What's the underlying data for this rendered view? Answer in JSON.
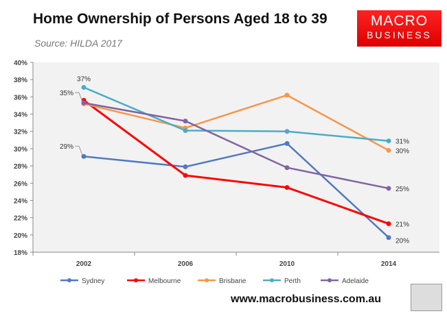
{
  "chart_data": {
    "type": "line",
    "title": "Home Ownership of Persons Aged 18 to 39",
    "subtitle": "Source: HILDA 2017",
    "categories": [
      "2002",
      "2006",
      "2010",
      "2014"
    ],
    "ylim": [
      18,
      40
    ],
    "yticks": [
      "18%",
      "20%",
      "22%",
      "24%",
      "26%",
      "28%",
      "30%",
      "32%",
      "34%",
      "36%",
      "38%",
      "40%"
    ],
    "grid": false,
    "legend_placement": "bottom",
    "series": [
      {
        "name": "Sydney",
        "color": "#4f7ac0",
        "values": [
          29.1,
          27.9,
          30.6,
          19.7
        ]
      },
      {
        "name": "Melbourne",
        "color": "#ff0000",
        "values": [
          35.6,
          26.9,
          25.5,
          21.3
        ]
      },
      {
        "name": "Brisbane",
        "color": "#f79646",
        "values": [
          35.2,
          32.4,
          36.2,
          29.8
        ]
      },
      {
        "name": "Perth",
        "color": "#4bacc6",
        "values": [
          37.1,
          32.1,
          32.0,
          30.9
        ]
      },
      {
        "name": "Adelaide",
        "color": "#8064a2",
        "values": [
          35.3,
          33.2,
          27.8,
          25.4
        ]
      }
    ],
    "annotations": [
      {
        "series": "Perth",
        "category": "2002",
        "text": "37%"
      },
      {
        "series": "Adelaide",
        "category": "2002",
        "text": "35%"
      },
      {
        "series": "Sydney",
        "category": "2002",
        "text": "29%"
      },
      {
        "series": "Perth",
        "category": "2014",
        "text": "31%"
      },
      {
        "series": "Brisbane",
        "category": "2014",
        "text": "30%"
      },
      {
        "series": "Adelaide",
        "category": "2014",
        "text": "25%"
      },
      {
        "series": "Melbourne",
        "category": "2014",
        "text": "21%"
      },
      {
        "series": "Sydney",
        "category": "2014",
        "text": "20%"
      }
    ]
  },
  "logo": {
    "line1": "MACRO",
    "line2": "BUSINESS"
  },
  "footer": {
    "url": "www.macrobusiness.com.au"
  }
}
